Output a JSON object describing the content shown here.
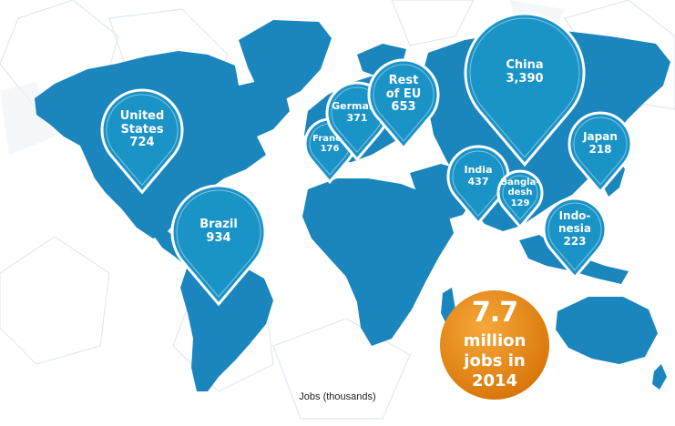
{
  "caption": "Jobs (thousands)",
  "total": {
    "value": "7.7",
    "lines": [
      "million",
      "jobs in",
      "2014"
    ]
  },
  "colors": {
    "land": "#1a86bd",
    "pin": "#1a93c7",
    "badge": "#e88818",
    "text": "#ffffff"
  },
  "markers": [
    {
      "id": "united-states",
      "lines": [
        "United",
        "States"
      ],
      "value": "724"
    },
    {
      "id": "brazil",
      "lines": [
        "Brazil"
      ],
      "value": "934"
    },
    {
      "id": "france",
      "lines": [
        "France"
      ],
      "value": "176"
    },
    {
      "id": "germany",
      "lines": [
        "Germany"
      ],
      "value": "371"
    },
    {
      "id": "rest-of-eu",
      "lines": [
        "Rest",
        "of EU"
      ],
      "value": "653"
    },
    {
      "id": "china",
      "lines": [
        "China"
      ],
      "value": "3,390"
    },
    {
      "id": "india",
      "lines": [
        "India"
      ],
      "value": "437"
    },
    {
      "id": "bangladesh",
      "lines": [
        "Bangla-",
        "desh"
      ],
      "value": "129"
    },
    {
      "id": "japan",
      "lines": [
        "Japan"
      ],
      "value": "218"
    },
    {
      "id": "indonesia",
      "lines": [
        "Indo-",
        "nesia"
      ],
      "value": "223"
    }
  ]
}
